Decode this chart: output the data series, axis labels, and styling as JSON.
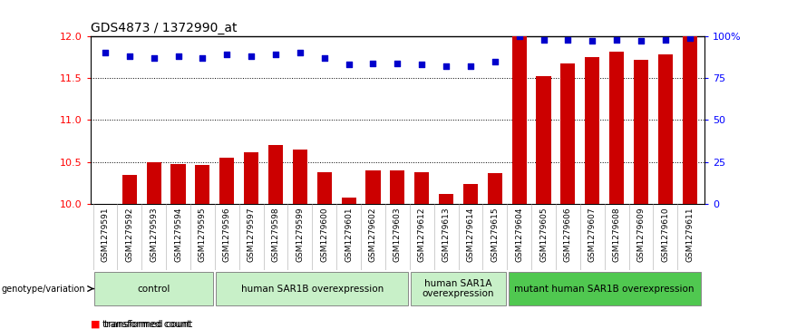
{
  "title": "GDS4873 / 1372990_at",
  "samples": [
    "GSM1279591",
    "GSM1279592",
    "GSM1279593",
    "GSM1279594",
    "GSM1279595",
    "GSM1279596",
    "GSM1279597",
    "GSM1279598",
    "GSM1279599",
    "GSM1279600",
    "GSM1279601",
    "GSM1279602",
    "GSM1279603",
    "GSM1279612",
    "GSM1279613",
    "GSM1279614",
    "GSM1279615",
    "GSM1279604",
    "GSM1279605",
    "GSM1279606",
    "GSM1279607",
    "GSM1279608",
    "GSM1279609",
    "GSM1279610",
    "GSM1279611"
  ],
  "red_values": [
    10.0,
    10.35,
    10.5,
    10.48,
    10.47,
    10.55,
    10.62,
    10.7,
    10.65,
    10.38,
    10.08,
    10.4,
    10.4,
    10.38,
    10.12,
    10.24,
    10.37,
    12.0,
    11.52,
    11.68,
    11.75,
    11.82,
    11.72,
    11.78,
    12.0
  ],
  "blue_values": [
    90,
    88,
    87,
    88,
    87,
    89,
    88,
    89,
    90,
    87,
    83,
    84,
    84,
    83,
    82,
    82,
    85,
    100,
    98,
    98,
    97,
    98,
    97,
    98,
    99
  ],
  "groups": [
    {
      "label": "control",
      "start": 0,
      "end": 5,
      "color": "#c8f0c8"
    },
    {
      "label": "human SAR1B overexpression",
      "start": 5,
      "end": 13,
      "color": "#c8f0c8"
    },
    {
      "label": "human SAR1A\noverexpression",
      "start": 13,
      "end": 17,
      "color": "#c8f0c8"
    },
    {
      "label": "mutant human SAR1B overexpression",
      "start": 17,
      "end": 25,
      "color": "#50c850"
    }
  ],
  "ylim_left": [
    10.0,
    12.0
  ],
  "ylim_right": [
    0,
    100
  ],
  "yticks_left": [
    10.0,
    10.5,
    11.0,
    11.5,
    12.0
  ],
  "yticks_right": [
    0,
    25,
    50,
    75,
    100
  ],
  "ytick_labels_right": [
    "0",
    "25",
    "50",
    "75",
    "100%"
  ],
  "bar_color": "#cc0000",
  "dot_color": "#0000cc",
  "bg_color": "#ffffff",
  "bar_width": 0.6,
  "dot_size": 22,
  "tick_label_color": "#888888",
  "sample_label_bg": "#d0d0d0"
}
